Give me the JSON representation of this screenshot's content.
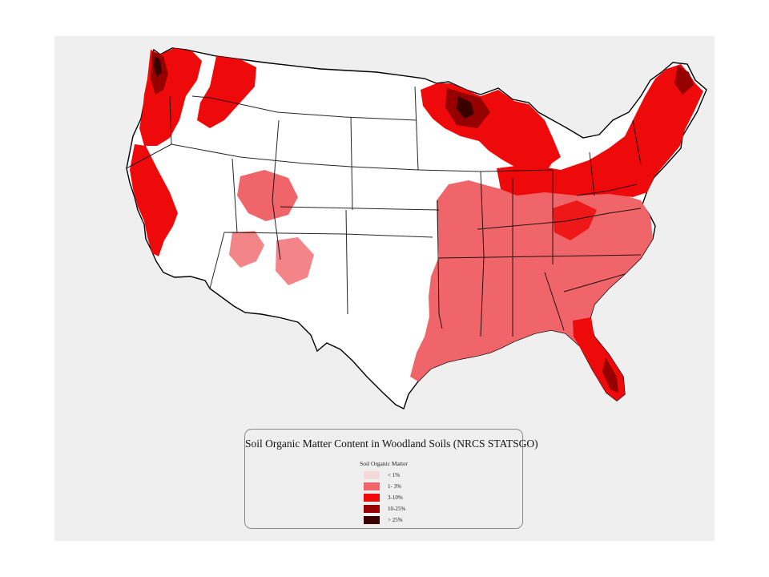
{
  "legend": {
    "title": "Soil Organic Matter Content in Woodland Soils (NRCS STATSGO)",
    "subtitle": "Soil Organic Matter",
    "items": [
      {
        "label": "< 1%",
        "color": "#f6d9d9"
      },
      {
        "label": "1- 3%",
        "color": "#f0656a"
      },
      {
        "label": "3-10%",
        "color": "#ee0a0a"
      },
      {
        "label": "10-25%",
        "color": "#950000"
      },
      {
        "label": "> 25%",
        "color": "#3a0000"
      }
    ]
  },
  "map": {
    "background": "#efefef",
    "land_color": "#ffffff",
    "border_color": "#000000"
  }
}
